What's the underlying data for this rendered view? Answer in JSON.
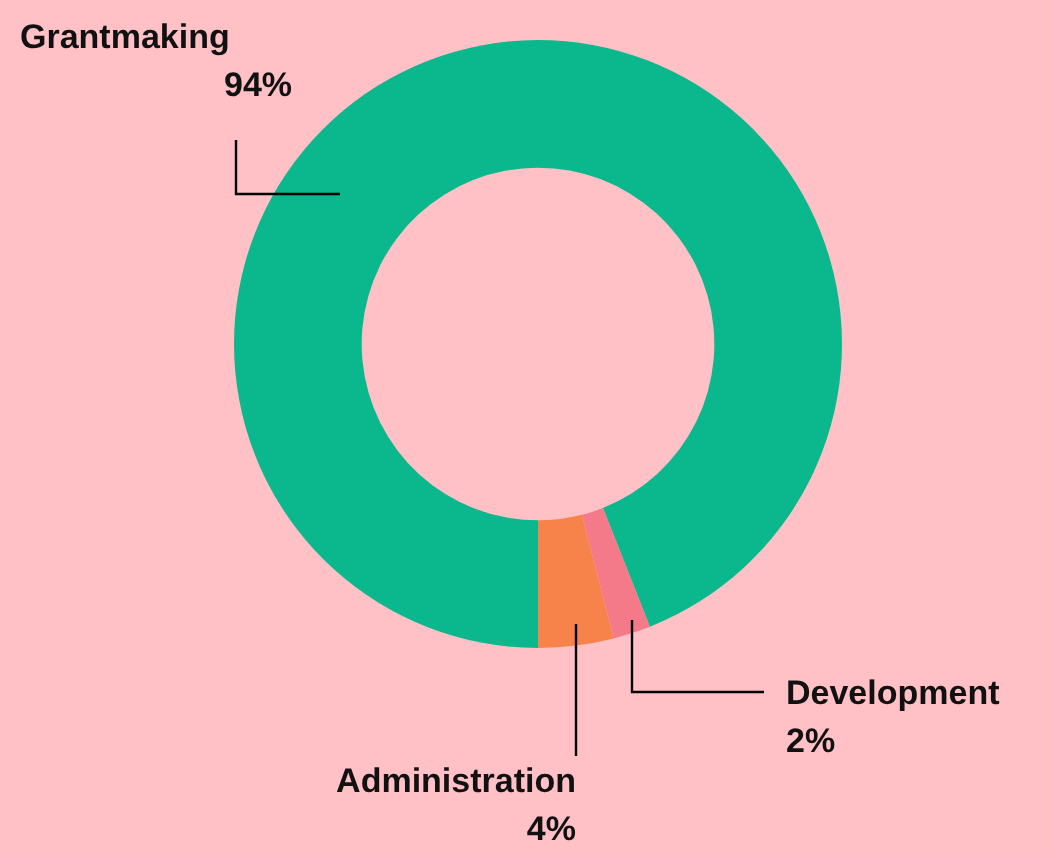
{
  "chart_data": {
    "type": "donut",
    "categories": [
      "Grantmaking",
      "Development",
      "Administration"
    ],
    "values": [
      94,
      2,
      4
    ],
    "value_labels": [
      "94%",
      "2%",
      "4%"
    ],
    "colors": [
      "#0bb88e",
      "#f47a8a",
      "#f7834a"
    ],
    "legend": false
  }
}
